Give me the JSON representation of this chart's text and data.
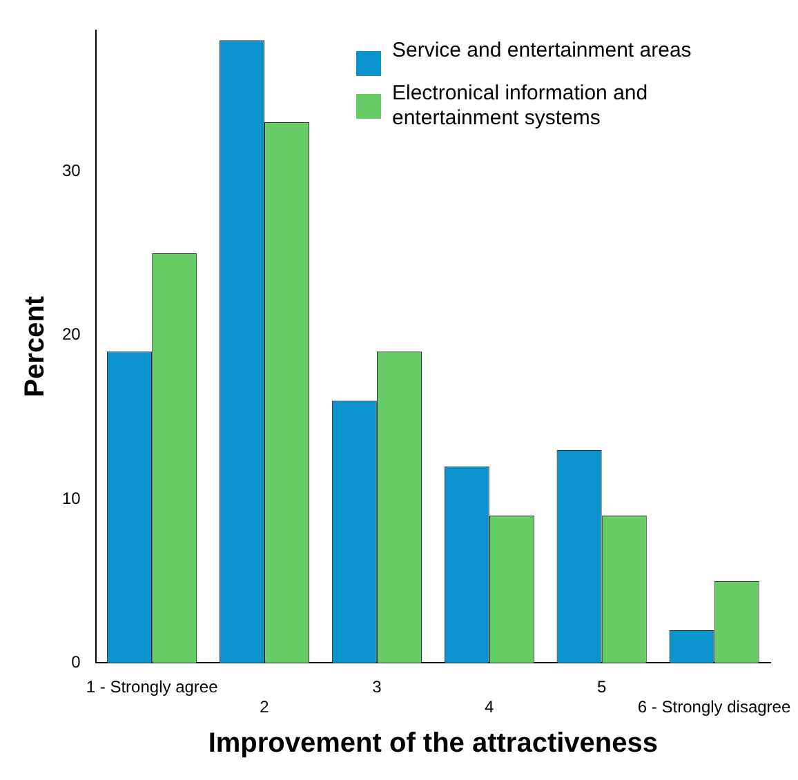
{
  "chart_data": {
    "type": "bar",
    "xlabel": "Improvement of the attractiveness",
    "ylabel": "Percent",
    "categories": [
      "1 - Strongly agree",
      "2",
      "3",
      "4",
      "5",
      "6 - Strongly disagree"
    ],
    "series": [
      {
        "name": "Service and entertainment areas",
        "color": "#0a93cc",
        "values": [
          19,
          38,
          16,
          12,
          13,
          2
        ]
      },
      {
        "name": "Electronical information and entertainment systems",
        "color": "#66cc66",
        "values": [
          25,
          33,
          19,
          9,
          9,
          5
        ]
      }
    ],
    "ylim": [
      0,
      38.6
    ],
    "yticks": [
      0,
      10,
      20,
      30
    ],
    "grid": false,
    "legend": "top right"
  }
}
